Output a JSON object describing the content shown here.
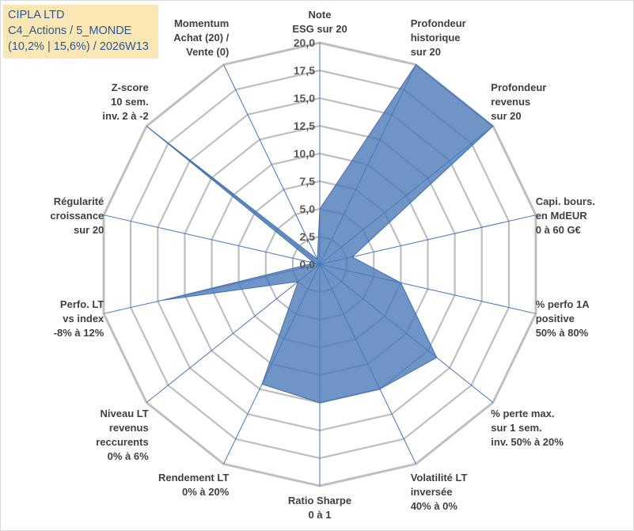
{
  "header": {
    "company": "CIPLA LTD",
    "portfolio": "C4_Actions / 5_MONDE",
    "stats": "(10,2% | 15,6%) / 2026W13"
  },
  "colors": {
    "fill": "#4a7ab8",
    "stroke": "#3e6fb3",
    "grid": "#bfbfbf",
    "spoke": "#4472c4",
    "info_bg": "#fbe7b3",
    "info_text": "#2b5797"
  },
  "chart_data": {
    "type": "radar",
    "rmin": 0,
    "rmax": 20,
    "tick_step": 2.5,
    "tick_labels": [
      "0,0",
      "2,5",
      "5,0",
      "7,5",
      "10,0",
      "12,5",
      "15,0",
      "17,5",
      "20,0"
    ],
    "axes": [
      {
        "lines": [
          "Note",
          "ESG sur 20"
        ],
        "value": 5.0
      },
      {
        "lines": [
          "Profondeur",
          "historique",
          "sur 20"
        ],
        "value": 20.0
      },
      {
        "lines": [
          "Profondeur",
          "revenus",
          "sur 20"
        ],
        "value": 20.0
      },
      {
        "lines": [
          "Capi. bours.",
          "en MdEUR",
          "0 à 60 G€"
        ],
        "value": 3.0
      },
      {
        "lines": [
          "% perfo 1A",
          "positive",
          "50% à 80%"
        ],
        "value": 7.5
      },
      {
        "lines": [
          "% perte max.",
          "sur 1 sem.",
          "inv. 50% à 20%"
        ],
        "value": 13.5
      },
      {
        "lines": [
          "Volatilité LT",
          "inversée",
          "40% à 0%"
        ],
        "value": 12.5
      },
      {
        "lines": [
          "Ratio Sharpe",
          "0 à 1"
        ],
        "value": 12.5
      },
      {
        "lines": [
          "Rendement LT",
          "0% à 20%"
        ],
        "value": 12.0
      },
      {
        "lines": [
          "Niveau LT",
          "revenus",
          "reccurents",
          "0% à 6%"
        ],
        "value": 2.5
      },
      {
        "lines": [
          "Perfo. LT",
          "vs index",
          "-8% à 12%"
        ],
        "value": 14.5
      },
      {
        "lines": [
          "Régularité",
          "croissance",
          "sur 20"
        ],
        "value": 0.5
      },
      {
        "lines": [
          "Z-score",
          "10 sem.",
          "inv. 2 à -2"
        ],
        "value": 20.0
      },
      {
        "lines": [
          "Momentum",
          "Achat (20) /",
          "Vente (0)"
        ],
        "value": 0.5
      }
    ]
  }
}
